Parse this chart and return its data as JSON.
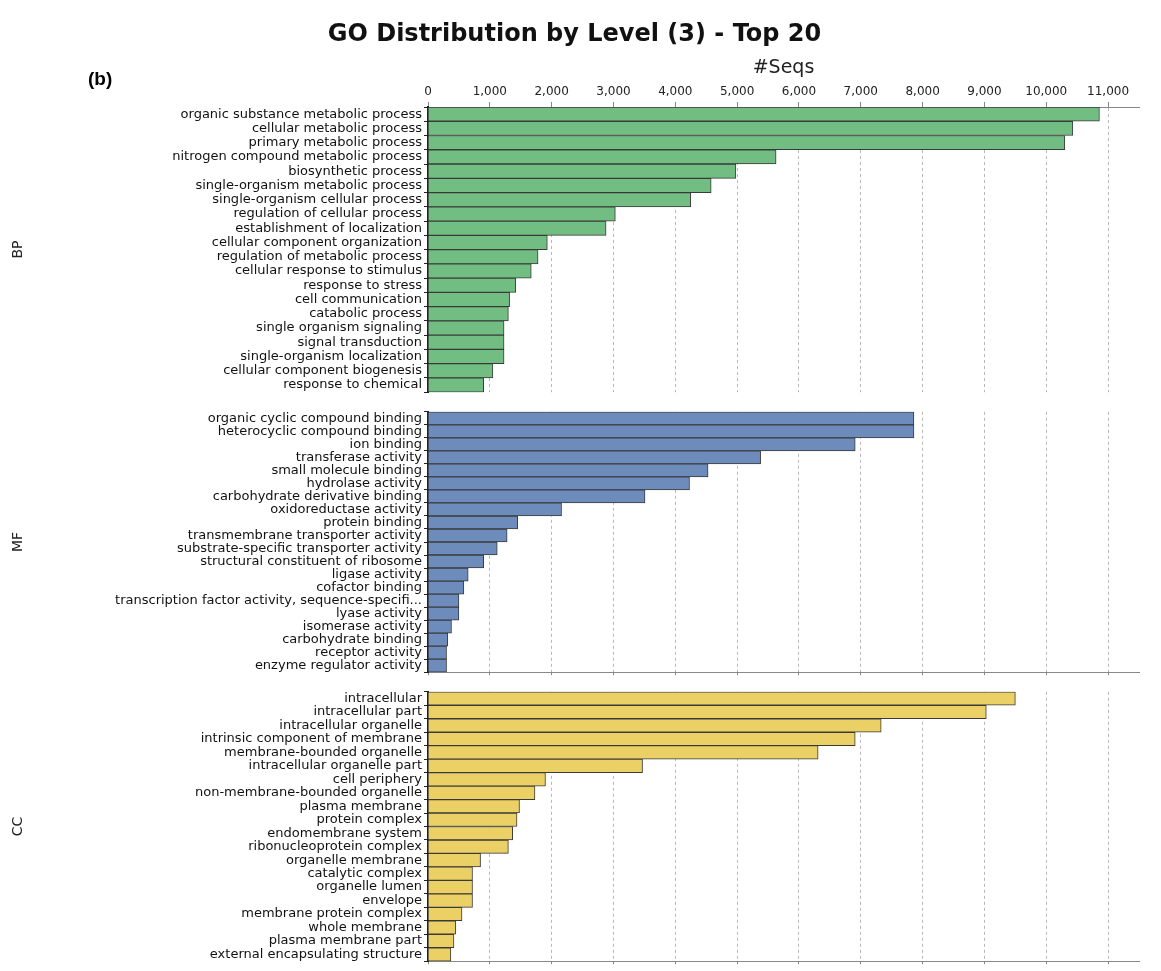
{
  "chart_data": [
    {
      "type": "bar",
      "orientation": "horizontal",
      "title": "GO Distribution by Level (3) - Top 20",
      "xlabel": "#Seqs",
      "ylabel": "BP",
      "annotations": [
        "(b)"
      ],
      "grid": "x",
      "xlim": [
        0,
        11500
      ],
      "xticks": [
        0,
        {
          "value": 1000,
          "label": "1,000"
        },
        {
          "value": 2000,
          "label": "2,000"
        },
        {
          "value": 3000,
          "label": "3,000"
        },
        {
          "value": 4000,
          "label": "4,000"
        },
        {
          "value": 5000,
          "label": "5,000"
        },
        {
          "value": 6000,
          "label": "6,000"
        },
        {
          "value": 7000,
          "label": "7,000"
        },
        {
          "value": 8000,
          "label": "8,000"
        },
        {
          "value": 9000,
          "label": "9,000"
        },
        {
          "value": 10000,
          "label": "10,000"
        },
        {
          "value": 11000,
          "label": "11,000"
        }
      ],
      "categories": [
        "organic substance metabolic process",
        "cellular metabolic process",
        "primary metabolic process",
        "nitrogen compound metabolic process",
        "biosynthetic process",
        "single-organism metabolic process",
        "single-organism cellular process",
        "regulation of cellular process",
        "establishment of localization",
        "cellular component organization",
        "regulation of metabolic process",
        "cellular response to stimulus",
        "response to stress",
        "cell communication",
        "catabolic process",
        "single organism signaling",
        "signal transduction",
        "single-organism localization",
        "cellular component biogenesis",
        "response to chemical"
      ],
      "color": "#72bd82",
      "values": [
        10860,
        10430,
        10300,
        5630,
        4980,
        4580,
        4250,
        3030,
        2880,
        1930,
        1780,
        1670,
        1420,
        1320,
        1300,
        1230,
        1230,
        1230,
        1050,
        900
      ]
    },
    {
      "type": "bar",
      "orientation": "horizontal",
      "ylabel": "MF",
      "grid": "x",
      "tick_labels": "y",
      "xlim": [
        0,
        11500
      ],
      "xticks": [
        0,
        1000,
        2000,
        3000,
        4000,
        5000,
        6000,
        7000,
        8000,
        9000,
        10000,
        11000
      ],
      "categories": [
        "organic cyclic compound binding",
        "heterocyclic compound binding",
        "ion binding",
        "transferase activity",
        "small molecule binding",
        "hydrolase activity",
        "carbohydrate derivative binding",
        "oxidoreductase activity",
        "protein binding",
        "transmembrane transporter activity",
        "substrate-specific transporter activity",
        "structural constituent of ribosome",
        "ligase activity",
        "cofactor binding",
        "transcription factor activity, sequence-specifi...",
        "lyase activity",
        "isomerase activity",
        "carbohydrate binding",
        "receptor activity",
        "enzyme regulator activity"
      ],
      "color": "#6e8cbb",
      "values": [
        7860,
        7860,
        6910,
        5380,
        4530,
        4230,
        3510,
        2160,
        1450,
        1280,
        1120,
        900,
        650,
        580,
        500,
        500,
        380,
        320,
        300,
        300
      ]
    },
    {
      "type": "bar",
      "orientation": "horizontal",
      "ylabel": "CC",
      "grid": "x",
      "tick_labels": "y",
      "xlim": [
        0,
        11500
      ],
      "xticks": [
        0,
        1000,
        2000,
        3000,
        4000,
        5000,
        6000,
        7000,
        8000,
        9000,
        10000,
        11000
      ],
      "categories": [
        "intracellular",
        "intracellular part",
        "intracellular organelle",
        "intrinsic component of membrane",
        "membrane-bounded organelle",
        "intracellular organelle part",
        "cell periphery",
        "non-membrane-bounded organelle",
        "plasma membrane",
        "protein complex",
        "endomembrane system",
        "ribonucleoprotein complex",
        "organelle membrane",
        "catalytic complex",
        "organelle lumen",
        "envelope",
        "membrane protein complex",
        "whole membrane",
        "plasma membrane part",
        "external encapsulating structure"
      ],
      "color": "#ebd066",
      "values": [
        9500,
        9030,
        7330,
        6910,
        6310,
        3470,
        1900,
        1730,
        1480,
        1440,
        1370,
        1300,
        850,
        720,
        720,
        720,
        550,
        450,
        420,
        370
      ]
    }
  ]
}
